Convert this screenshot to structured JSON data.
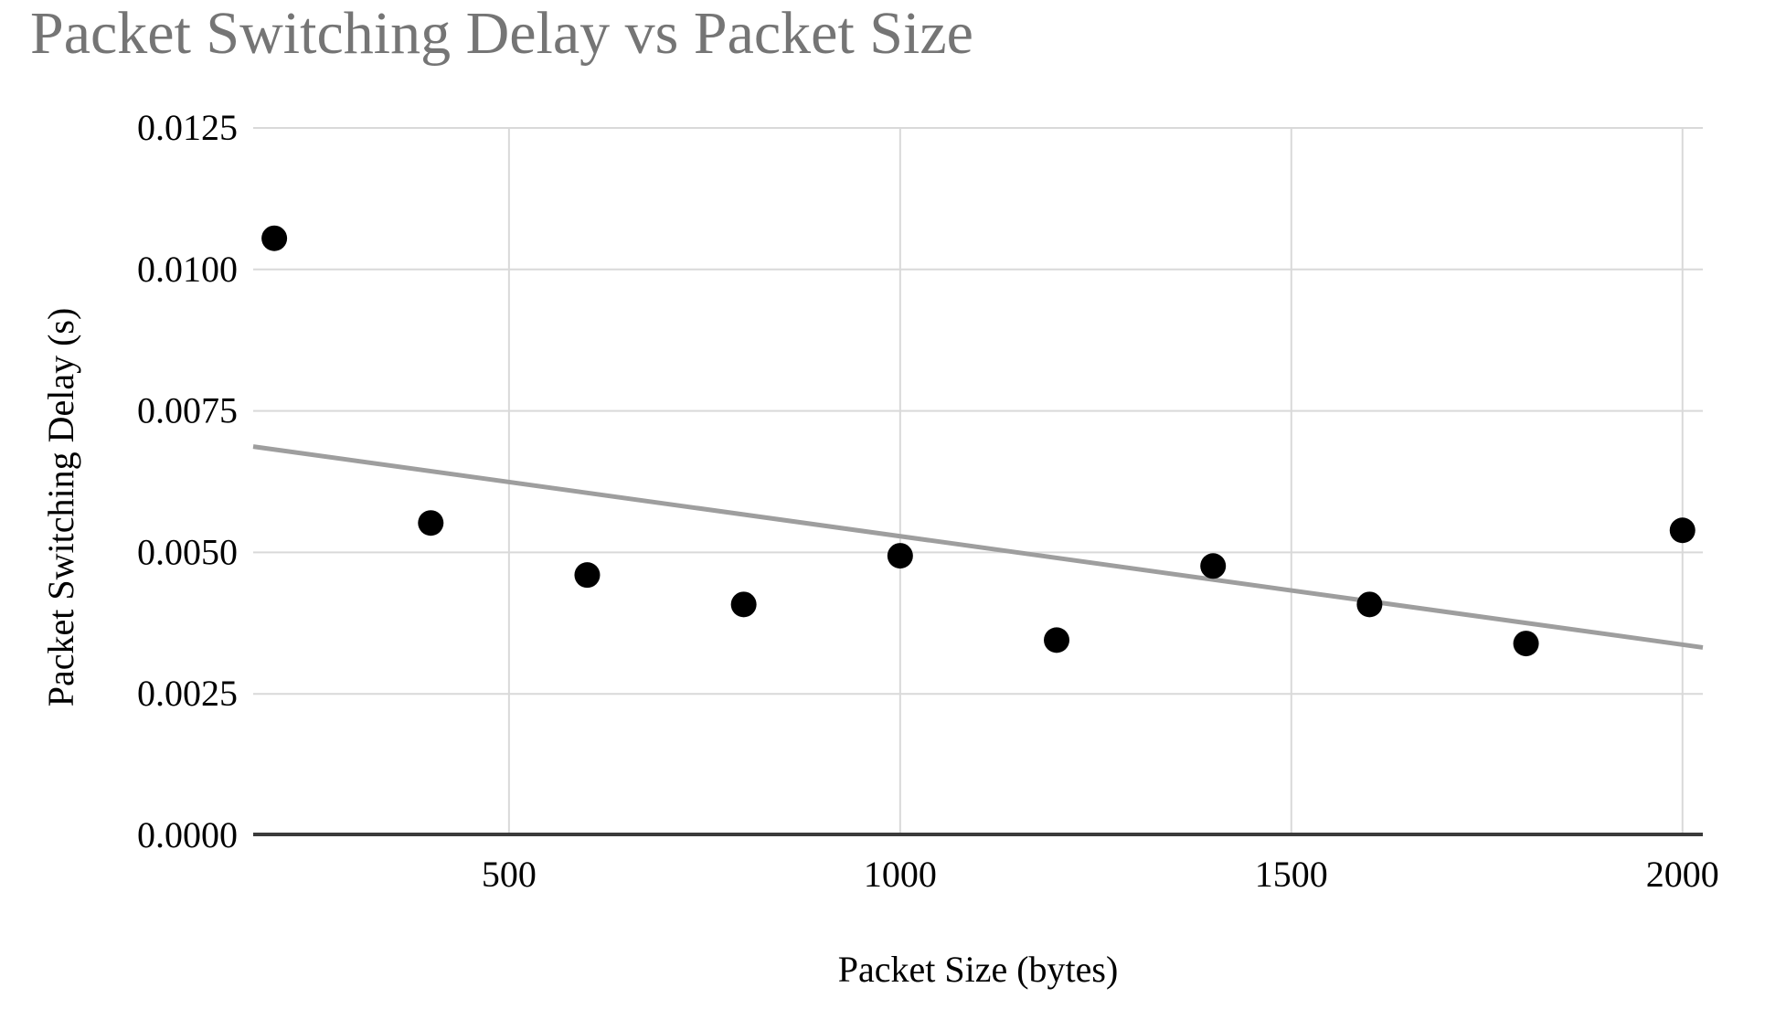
{
  "page": {
    "background": "#ffffff"
  },
  "chart_data": {
    "type": "scatter",
    "title": "Packet Switching Delay vs Packet Size",
    "xlabel": "Packet Size (bytes)",
    "ylabel": "Packet Switching Delay (s)",
    "xlim": [
      173,
      2026
    ],
    "ylim": [
      0,
      0.0125
    ],
    "grid": true,
    "legend": false,
    "x_ticks": [
      500,
      1000,
      1500,
      2000
    ],
    "x_tick_labels": [
      "500",
      "1000",
      "1500",
      "2000"
    ],
    "y_ticks": [
      0,
      0.0025,
      0.005,
      0.0075,
      0.01,
      0.0125
    ],
    "y_tick_labels": [
      "0.0000",
      "0.0025",
      "0.0050",
      "0.0075",
      "0.0100",
      "0.0125"
    ],
    "series": [
      {
        "name": "packet-switching-delay-points",
        "type": "scatter",
        "color": "#000000",
        "marker_radius_px": 14,
        "x": [
          200,
          400,
          600,
          800,
          1000,
          1200,
          1400,
          1600,
          1800,
          2000
        ],
        "y": [
          0.01055,
          0.00552,
          0.0046,
          0.00408,
          0.00494,
          0.00345,
          0.00476,
          0.00408,
          0.00339,
          0.00539
        ]
      },
      {
        "name": "trend-line",
        "type": "line",
        "color": "#9e9e9e",
        "stroke_width_px": 5,
        "x": [
          173,
          2026
        ],
        "y": [
          0.00687,
          0.00332
        ]
      }
    ],
    "colors": {
      "title": "#757575",
      "tick_label": "#000000",
      "grid": "#d9d9d9",
      "axis": "#3b3b3b",
      "point": "#000000",
      "trend": "#9e9e9e"
    }
  }
}
